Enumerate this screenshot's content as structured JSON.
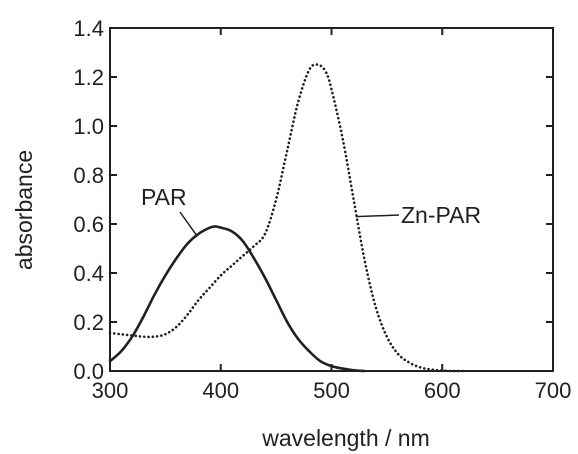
{
  "chart_data": {
    "type": "line",
    "xlabel": "wavelength / nm",
    "ylabel": "absorbance",
    "xlim": [
      300,
      700
    ],
    "ylim": [
      0.0,
      1.4
    ],
    "x_ticks": [
      300,
      400,
      500,
      600,
      700
    ],
    "y_ticks": [
      0.0,
      0.2,
      0.4,
      0.6,
      0.8,
      1.0,
      1.2,
      1.4
    ],
    "x_tick_labels": [
      "300",
      "400",
      "500",
      "600",
      "700"
    ],
    "y_tick_labels": [
      "0.0",
      "0.2",
      "0.4",
      "0.6",
      "0.8",
      "1.0",
      "1.2",
      "1.4"
    ],
    "grid": false,
    "legend": "none",
    "series": [
      {
        "name": "PAR",
        "style": "solid",
        "color": "#231f20",
        "x": [
          300,
          310,
          320,
          330,
          340,
          350,
          360,
          370,
          380,
          390,
          395,
          400,
          410,
          420,
          430,
          440,
          450,
          460,
          470,
          480,
          490,
          500,
          510,
          520,
          530
        ],
        "y": [
          0.04,
          0.08,
          0.14,
          0.22,
          0.31,
          0.39,
          0.46,
          0.52,
          0.56,
          0.585,
          0.59,
          0.585,
          0.57,
          0.53,
          0.46,
          0.38,
          0.29,
          0.2,
          0.13,
          0.08,
          0.04,
          0.02,
          0.01,
          0.003,
          0.0
        ]
      },
      {
        "name": "Zn-PAR",
        "style": "dotted",
        "color": "#231f20",
        "x": [
          300,
          310,
          320,
          330,
          340,
          350,
          360,
          370,
          380,
          390,
          400,
          410,
          420,
          430,
          440,
          450,
          460,
          470,
          480,
          488,
          495,
          500,
          510,
          520,
          530,
          540,
          550,
          560,
          570,
          580,
          590,
          600,
          610,
          620
        ],
        "y": [
          0.155,
          0.15,
          0.145,
          0.14,
          0.14,
          0.15,
          0.18,
          0.23,
          0.29,
          0.34,
          0.39,
          0.43,
          0.47,
          0.51,
          0.56,
          0.7,
          0.9,
          1.1,
          1.23,
          1.25,
          1.22,
          1.15,
          0.95,
          0.7,
          0.45,
          0.26,
          0.14,
          0.07,
          0.035,
          0.015,
          0.006,
          0.002,
          0.0,
          0.0
        ]
      }
    ],
    "annotations": [
      {
        "text": "PAR",
        "series": "PAR"
      },
      {
        "text": "Zn-PAR",
        "series": "Zn-PAR"
      }
    ]
  }
}
